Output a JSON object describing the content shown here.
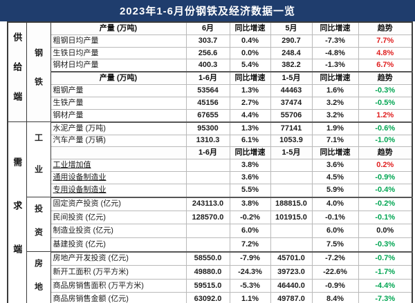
{
  "title": "2023年1-6月份钢铁及经济数据一览",
  "colors": {
    "title_bg": "#1f3d6d",
    "title_text": "#ffffff",
    "trend": {
      "up": "#e01e1e",
      "down": "#00a551",
      "flat": "#1a1a1a"
    }
  },
  "table": {
    "rows": [
      {
        "type": "header",
        "side": {
          "label": "供给端",
          "span": 8,
          "ls": "ls-supply"
        },
        "category": {
          "label": "钢铁",
          "span": 8,
          "ls": "ls-steel"
        },
        "cells": [
          "产量 (万吨)",
          "6月",
          "同比增速",
          "5月",
          "同比增速",
          "趋势"
        ]
      },
      {
        "type": "data",
        "cells": [
          "粗钢日均产量",
          "303.7",
          "0.4%",
          "290.7",
          "-7.3%",
          "7.7%"
        ],
        "trend": "up"
      },
      {
        "type": "data",
        "cells": [
          "生铁日均产量",
          "256.6",
          "0.0%",
          "248.4",
          "-4.8%",
          "4.8%"
        ],
        "trend": "up"
      },
      {
        "type": "data",
        "cells": [
          "钢材日均产量",
          "400.3",
          "5.4%",
          "382.2",
          "-1.3%",
          "6.7%"
        ],
        "trend": "up"
      },
      {
        "type": "header",
        "section_break": true,
        "cells": [
          "产量 (万吨)",
          "1-6月",
          "同比增速",
          "1-5月",
          "同比增速",
          "趋势"
        ]
      },
      {
        "type": "data",
        "cells": [
          "粗钢产量",
          "53564",
          "1.3%",
          "44463",
          "1.6%",
          "-0.3%"
        ],
        "trend": "down"
      },
      {
        "type": "data",
        "cells": [
          "生铁产量",
          "45156",
          "2.7%",
          "37474",
          "3.2%",
          "-0.5%"
        ],
        "trend": "down"
      },
      {
        "type": "data",
        "cells": [
          "钢材产量",
          "67655",
          "4.4%",
          "55706",
          "3.2%",
          "1.2%"
        ],
        "trend": "up"
      },
      {
        "type": "data",
        "section_break": true,
        "side": {
          "label": "需求端",
          "span": 14,
          "ls": "ls-demand"
        },
        "category": {
          "label": "工业",
          "span": 6,
          "ls": "ls-industry"
        },
        "cells": [
          "水泥产量 (万吨)",
          "95300",
          "1.3%",
          "77141",
          "1.9%",
          "-0.6%"
        ],
        "trend": "down"
      },
      {
        "type": "data",
        "cells": [
          "汽车产量 (万辆)",
          "1310.3",
          "6.1%",
          "1053.9",
          "7.1%",
          "-1.0%"
        ],
        "trend": "down"
      },
      {
        "type": "header",
        "cells": [
          "",
          "1-6月",
          "同比增速",
          "1-5月",
          "同比增速",
          "趋势"
        ]
      },
      {
        "type": "data",
        "underline": true,
        "cells": [
          "工业增加值",
          "",
          "3.8%",
          "",
          "3.6%",
          "0.2%"
        ],
        "trend": "up"
      },
      {
        "type": "data",
        "underline": true,
        "cells": [
          "通用设备制造业",
          "",
          "3.6%",
          "",
          "4.5%",
          "-0.9%"
        ],
        "trend": "down"
      },
      {
        "type": "data",
        "underline": true,
        "cells": [
          "专用设备制造业",
          "",
          "5.5%",
          "",
          "5.9%",
          "-0.4%"
        ],
        "trend": "down"
      },
      {
        "type": "data",
        "section_break": true,
        "category": {
          "label": "投资",
          "span": 4,
          "ls": "ls-small"
        },
        "cells": [
          "固定资产投资 (亿元)",
          "243113.0",
          "3.8%",
          "188815.0",
          "4.0%",
          "-0.2%"
        ],
        "trend": "down"
      },
      {
        "type": "data",
        "cells": [
          "民间投资 (亿元)",
          "128570.0",
          "-0.2%",
          "101915.0",
          "-0.1%",
          "-0.1%"
        ],
        "trend": "down"
      },
      {
        "type": "data",
        "cells": [
          "制造业投资 (亿元)",
          "",
          "6.0%",
          "",
          "6.0%",
          "0.0%"
        ],
        "trend": "flat"
      },
      {
        "type": "data",
        "cells": [
          "基建投资 (亿元)",
          "",
          "7.2%",
          "",
          "7.5%",
          "-0.3%"
        ],
        "trend": "down"
      },
      {
        "type": "data",
        "section_break": true,
        "category": {
          "label": "房地",
          "span": 4,
          "ls": "ls-small"
        },
        "cells": [
          "房地产开发投资 (亿元)",
          "58550.0",
          "-7.9%",
          "45701.0",
          "-7.2%",
          "-0.7%"
        ],
        "trend": "down"
      },
      {
        "type": "data",
        "cells": [
          "新开工面积 (万平方米)",
          "49880.0",
          "-24.3%",
          "39723.0",
          "-22.6%",
          "-1.7%"
        ],
        "trend": "down"
      },
      {
        "type": "data",
        "cells": [
          "商品房销售面积 (万平方米)",
          "59515.0",
          "-5.3%",
          "46440.0",
          "-0.9%",
          "-4.4%"
        ],
        "trend": "down"
      },
      {
        "type": "data",
        "cells": [
          "商品房销售金额 (亿元)",
          "63092.0",
          "1.1%",
          "49787.0",
          "8.4%",
          "-7.3%"
        ],
        "trend": "down"
      }
    ]
  }
}
